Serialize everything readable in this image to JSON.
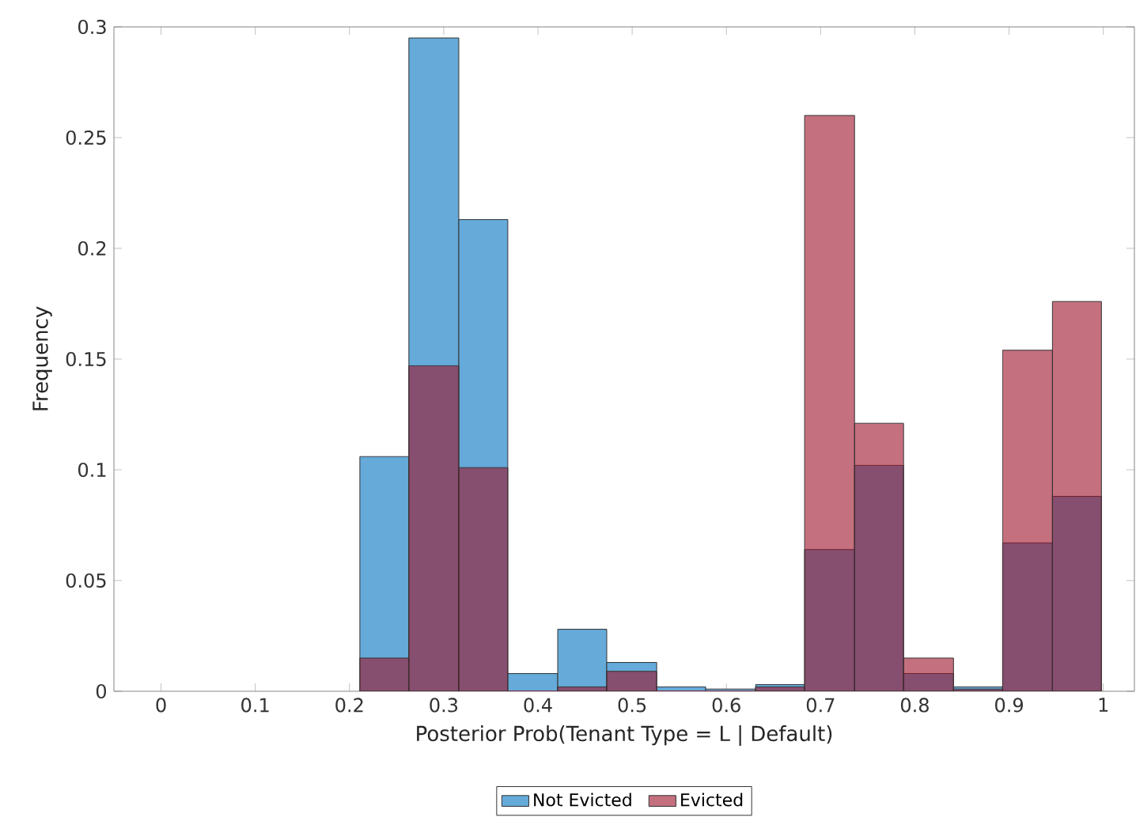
{
  "chart_data": {
    "type": "histogram",
    "xlabel": "Posterior Prob(Tenant Type = L | Default)",
    "ylabel": "Frequency",
    "bins": [
      0.211,
      0.263,
      0.316,
      0.368,
      0.421,
      0.473,
      0.526,
      0.578,
      0.631,
      0.683,
      0.736,
      0.788,
      0.841,
      0.893,
      0.946,
      0.998
    ],
    "series": [
      {
        "name": "Not Evicted",
        "color": "#65aad9",
        "values": [
          0.106,
          0.295,
          0.213,
          0.008,
          0.028,
          0.013,
          0.002,
          0.001,
          0.003,
          0.064,
          0.102,
          0.008,
          0.002,
          0.067,
          0.088
        ]
      },
      {
        "name": "Evicted",
        "color": "#c4707e",
        "values": [
          0.015,
          0.147,
          0.101,
          0,
          0.002,
          0.009,
          0,
          0,
          0.002,
          0.26,
          0.121,
          0.015,
          0.001,
          0.154,
          0.176
        ]
      }
    ],
    "xlim": [
      -0.05,
      1.033
    ],
    "ylim": [
      0,
      0.3
    ],
    "xticks": [
      0,
      0.1,
      0.2,
      0.3,
      0.4,
      0.5,
      0.6,
      0.7,
      0.8,
      0.9,
      1
    ],
    "yticks": [
      0,
      0.05,
      0.1,
      0.15,
      0.2,
      0.25,
      0.3
    ],
    "legend": "bottom",
    "grid": false
  }
}
